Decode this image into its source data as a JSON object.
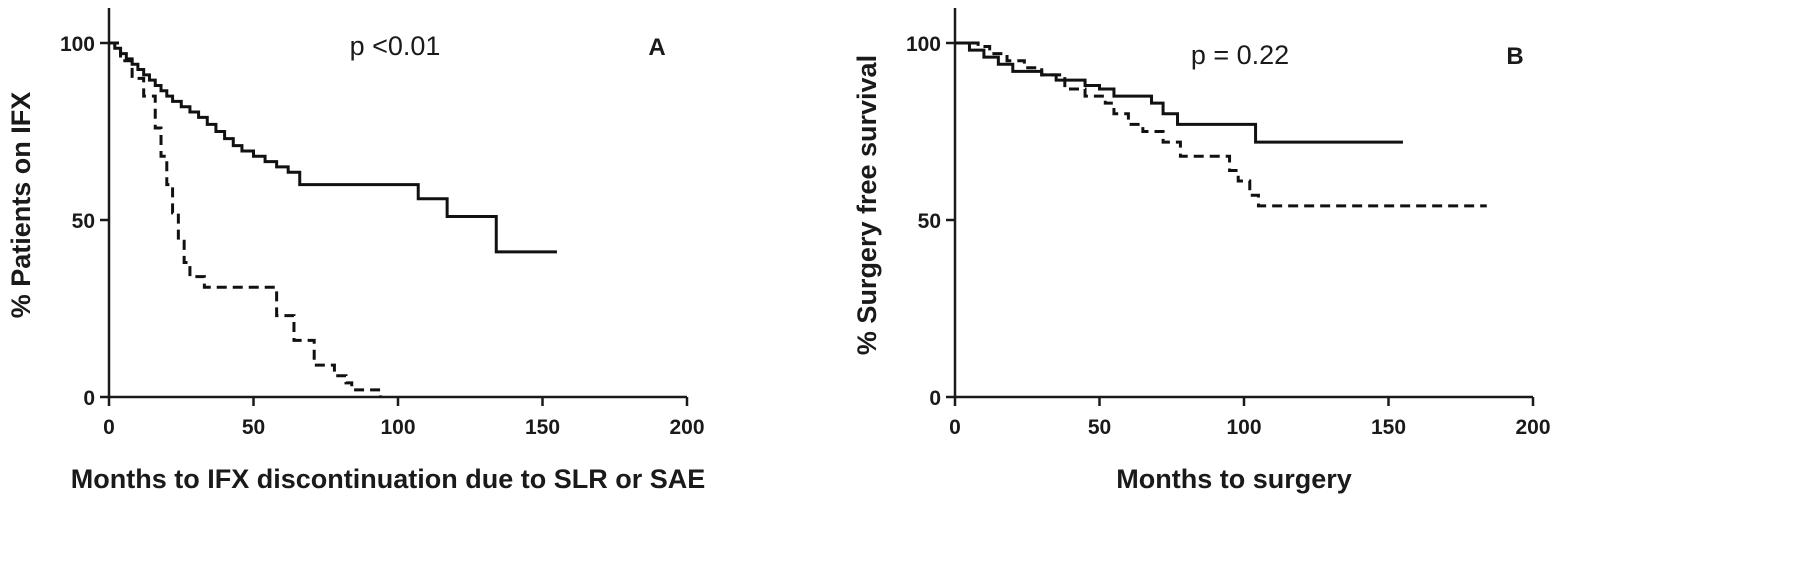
{
  "chart_data": [
    {
      "type": "line",
      "panel_label": "A",
      "annotation": "p <0.01",
      "xlabel": "Months to IFX discontinuation due to SLR or SAE",
      "ylabel": "% Patients on IFX",
      "xlim": [
        0,
        200
      ],
      "ylim": [
        0,
        100
      ],
      "xticks": [
        0,
        50,
        100,
        150,
        200
      ],
      "yticks": [
        0,
        50,
        100
      ],
      "grid": false,
      "step": true,
      "series": [
        {
          "style": "solid",
          "x": [
            0,
            2,
            4,
            6,
            8,
            10,
            12,
            14,
            16,
            18,
            20,
            22,
            25,
            28,
            31,
            34,
            37,
            40,
            43,
            46,
            50,
            54,
            58,
            62,
            66,
            107,
            117,
            134,
            155
          ],
          "y": [
            100,
            98.5,
            97,
            95.5,
            94,
            92.5,
            91,
            89.5,
            88,
            86.5,
            85,
            83.5,
            82,
            80.5,
            79,
            77,
            75,
            73,
            71,
            69.5,
            68,
            66.5,
            65,
            63.5,
            60,
            56,
            51,
            41,
            41
          ]
        },
        {
          "style": "dashed",
          "x": [
            0,
            4,
            8,
            12,
            16,
            18,
            20,
            22,
            24,
            26,
            28,
            33,
            58,
            64,
            71,
            78,
            82,
            84,
            94
          ],
          "y": [
            100,
            95,
            90,
            85,
            76,
            68,
            60,
            52,
            44,
            38,
            34,
            31,
            23,
            16,
            9,
            6,
            4,
            2,
            0
          ]
        }
      ]
    },
    {
      "type": "line",
      "panel_label": "B",
      "annotation": "p = 0.22",
      "xlabel": "Months to surgery",
      "ylabel": "% Surgery free survival",
      "xlim": [
        0,
        200
      ],
      "ylim": [
        0,
        100
      ],
      "xticks": [
        0,
        50,
        100,
        150,
        200
      ],
      "yticks": [
        0,
        50,
        100
      ],
      "grid": false,
      "step": true,
      "series": [
        {
          "style": "solid",
          "x": [
            0,
            5,
            10,
            15,
            20,
            30,
            35,
            45,
            50,
            55,
            68,
            72,
            77,
            104,
            155
          ],
          "y": [
            100,
            98,
            96,
            94,
            92,
            91,
            89.5,
            88,
            87,
            85,
            83,
            80,
            77,
            72,
            72
          ]
        },
        {
          "style": "dashed",
          "x": [
            0,
            8,
            12,
            18,
            24,
            30,
            38,
            45,
            52,
            55,
            60,
            65,
            72,
            78,
            95,
            98,
            102,
            105,
            184
          ],
          "y": [
            100,
            99,
            97,
            95,
            93,
            91,
            87,
            85,
            83,
            80,
            77,
            75,
            72,
            68,
            64,
            61,
            57,
            54,
            54
          ]
        }
      ]
    }
  ]
}
